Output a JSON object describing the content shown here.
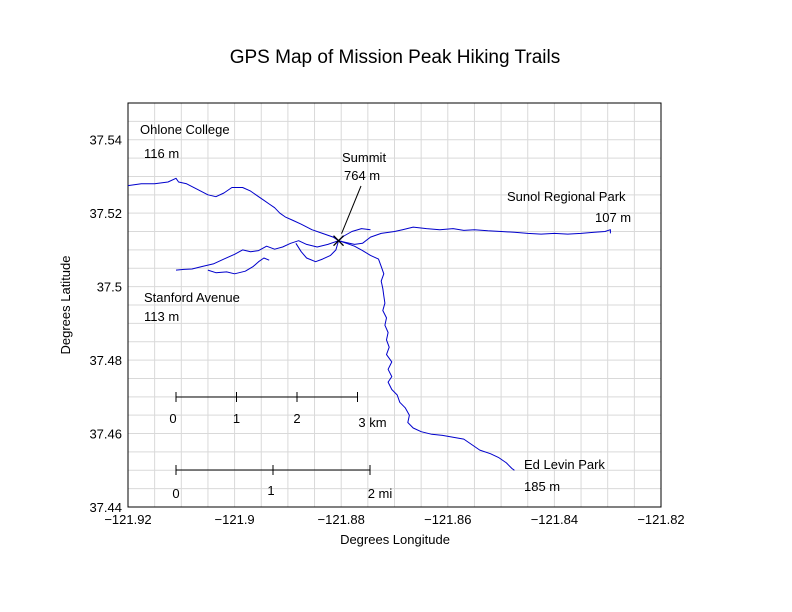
{
  "chart_data": {
    "type": "line",
    "title": "GPS Map of Mission Peak Hiking Trails",
    "xlabel": "Degrees Longitude",
    "ylabel": "Degrees Latitude",
    "xlim": [
      -121.92,
      -121.82
    ],
    "ylim": [
      37.44,
      37.55
    ],
    "xticks": [
      -121.92,
      -121.9,
      -121.88,
      -121.86,
      -121.84,
      -121.82
    ],
    "xtick_labels": [
      "−121.92",
      "−121.9",
      "−121.88",
      "−121.86",
      "−121.84",
      "−121.82"
    ],
    "yticks": [
      37.44,
      37.46,
      37.48,
      37.5,
      37.52,
      37.54
    ],
    "ytick_labels": [
      "37.44",
      "37.46",
      "37.48",
      "37.5",
      "37.52",
      "37.54"
    ],
    "grid": true,
    "trail_color": "#0000cc",
    "places": [
      {
        "name": "Ohlone College",
        "elevation": "116 m",
        "lon": -121.919,
        "lat": 37.53
      },
      {
        "name": "Stanford Avenue",
        "elevation": "113 m",
        "lon": -121.91,
        "lat": 37.505
      },
      {
        "name": "Summit",
        "elevation": "764 m",
        "lon": -121.8805,
        "lat": 37.5125
      },
      {
        "name": "Sunol Regional Park",
        "elevation": "107 m",
        "lon": -121.8295,
        "lat": 37.5155
      },
      {
        "name": "Ed Levin Park",
        "elevation": "185 m",
        "lon": -121.8475,
        "lat": 37.45
      }
    ],
    "scale_bars": [
      {
        "unit": "km",
        "ticks": [
          "0",
          "1",
          "2",
          "3 km"
        ]
      },
      {
        "unit": "mi",
        "ticks": [
          "0",
          "1",
          "2 mi"
        ]
      }
    ],
    "trails": [
      {
        "points": [
          [
            -121.92,
            37.5275
          ],
          [
            -121.9175,
            37.528
          ],
          [
            -121.915,
            37.528
          ],
          [
            -121.9125,
            37.5285
          ],
          [
            -121.911,
            37.5295
          ],
          [
            -121.9105,
            37.5285
          ],
          [
            -121.909,
            37.528
          ],
          [
            -121.907,
            37.5265
          ],
          [
            -121.905,
            37.525
          ],
          [
            -121.9035,
            37.5245
          ],
          [
            -121.902,
            37.5255
          ],
          [
            -121.9005,
            37.527
          ],
          [
            -121.8985,
            37.527
          ],
          [
            -121.897,
            37.526
          ],
          [
            -121.8955,
            37.5245
          ],
          [
            -121.8945,
            37.5235
          ],
          [
            -121.8935,
            37.5225
          ],
          [
            -121.8925,
            37.5215
          ],
          [
            -121.8915,
            37.52
          ],
          [
            -121.8905,
            37.519
          ],
          [
            -121.889,
            37.518
          ],
          [
            -121.8875,
            37.517
          ],
          [
            -121.8855,
            37.5155
          ],
          [
            -121.8835,
            37.5145
          ],
          [
            -121.8815,
            37.5135
          ],
          [
            -121.8805,
            37.5125
          ],
          [
            -121.879,
            37.5118
          ],
          [
            -121.8775,
            37.511
          ],
          [
            -121.876,
            37.5098
          ],
          [
            -121.8745,
            37.5085
          ],
          [
            -121.873,
            37.5075
          ],
          [
            -121.8725,
            37.5055
          ],
          [
            -121.872,
            37.5035
          ],
          [
            -121.8725,
            37.5015
          ],
          [
            -121.8722,
            37.4995
          ],
          [
            -121.872,
            37.4975
          ],
          [
            -121.8718,
            37.4955
          ],
          [
            -121.8722,
            37.4935
          ],
          [
            -121.8715,
            37.4915
          ],
          [
            -121.8718,
            37.4895
          ],
          [
            -121.8712,
            37.4875
          ],
          [
            -121.8715,
            37.4855
          ],
          [
            -121.871,
            37.4835
          ],
          [
            -121.8715,
            37.4815
          ],
          [
            -121.8705,
            37.4795
          ],
          [
            -121.8712,
            37.4775
          ],
          [
            -121.8705,
            37.4755
          ],
          [
            -121.8712,
            37.474
          ],
          [
            -121.8705,
            37.472
          ],
          [
            -121.8695,
            37.4705
          ],
          [
            -121.869,
            37.4685
          ],
          [
            -121.868,
            37.467
          ],
          [
            -121.8672,
            37.465
          ],
          [
            -121.8675,
            37.463
          ],
          [
            -121.8665,
            37.4615
          ],
          [
            -121.865,
            37.4605
          ],
          [
            -121.863,
            37.4598
          ],
          [
            -121.861,
            37.4595
          ],
          [
            -121.859,
            37.459
          ],
          [
            -121.857,
            37.4585
          ],
          [
            -121.8555,
            37.457
          ],
          [
            -121.854,
            37.4555
          ],
          [
            -121.852,
            37.4545
          ],
          [
            -121.8505,
            37.4535
          ],
          [
            -121.849,
            37.452
          ],
          [
            -121.848,
            37.4505
          ],
          [
            -121.8475,
            37.45
          ]
        ]
      },
      {
        "points": [
          [
            -121.8805,
            37.5125
          ],
          [
            -121.879,
            37.512
          ],
          [
            -121.8775,
            37.5115
          ],
          [
            -121.876,
            37.5118
          ],
          [
            -121.8745,
            37.5135
          ],
          [
            -121.8725,
            37.5145
          ],
          [
            -121.87,
            37.515
          ],
          [
            -121.8685,
            37.5155
          ],
          [
            -121.8665,
            37.5162
          ],
          [
            -121.864,
            37.5158
          ],
          [
            -121.8615,
            37.5155
          ],
          [
            -121.859,
            37.5158
          ],
          [
            -121.857,
            37.5153
          ],
          [
            -121.855,
            37.5155
          ],
          [
            -121.8525,
            37.5152
          ],
          [
            -121.85,
            37.515
          ],
          [
            -121.8475,
            37.5148
          ],
          [
            -121.845,
            37.5145
          ],
          [
            -121.8425,
            37.5143
          ],
          [
            -121.84,
            37.5145
          ],
          [
            -121.8375,
            37.5143
          ],
          [
            -121.835,
            37.5145
          ],
          [
            -121.8325,
            37.5148
          ],
          [
            -121.8305,
            37.515
          ],
          [
            -121.8295,
            37.5155
          ],
          [
            -121.8295,
            37.5145
          ]
        ]
      },
      {
        "points": [
          [
            -121.8805,
            37.5125
          ],
          [
            -121.8825,
            37.5115
          ],
          [
            -121.8845,
            37.5108
          ],
          [
            -121.8865,
            37.5115
          ],
          [
            -121.888,
            37.5125
          ],
          [
            -121.8895,
            37.5118
          ],
          [
            -121.891,
            37.5108
          ],
          [
            -121.8925,
            37.5102
          ],
          [
            -121.894,
            37.511
          ],
          [
            -121.8955,
            37.5098
          ],
          [
            -121.897,
            37.5095
          ],
          [
            -121.8985,
            37.51
          ],
          [
            -121.9,
            37.5088
          ],
          [
            -121.902,
            37.5075
          ],
          [
            -121.904,
            37.5062
          ],
          [
            -121.906,
            37.5055
          ],
          [
            -121.908,
            37.5048
          ],
          [
            -121.9095,
            37.5047
          ],
          [
            -121.911,
            37.5045
          ]
        ]
      },
      {
        "points": [
          [
            -121.8885,
            37.5118
          ],
          [
            -121.8875,
            37.5095
          ],
          [
            -121.8865,
            37.5078
          ],
          [
            -121.8848,
            37.5068
          ],
          [
            -121.8835,
            37.5075
          ],
          [
            -121.882,
            37.5085
          ],
          [
            -121.881,
            37.51
          ],
          [
            -121.8805,
            37.5125
          ]
        ]
      },
      {
        "points": [
          [
            -121.905,
            37.5045
          ],
          [
            -121.9035,
            37.5038
          ],
          [
            -121.9015,
            37.504
          ],
          [
            -121.9,
            37.5035
          ],
          [
            -121.898,
            37.5042
          ],
          [
            -121.8965,
            37.5055
          ],
          [
            -121.8955,
            37.5068
          ],
          [
            -121.8945,
            37.5078
          ],
          [
            -121.8935,
            37.5072
          ]
        ]
      },
      {
        "points": [
          [
            -121.8805,
            37.5125
          ],
          [
            -121.8795,
            37.5138
          ],
          [
            -121.878,
            37.515
          ],
          [
            -121.8762,
            37.5158
          ],
          [
            -121.8745,
            37.5155
          ]
        ]
      }
    ]
  }
}
